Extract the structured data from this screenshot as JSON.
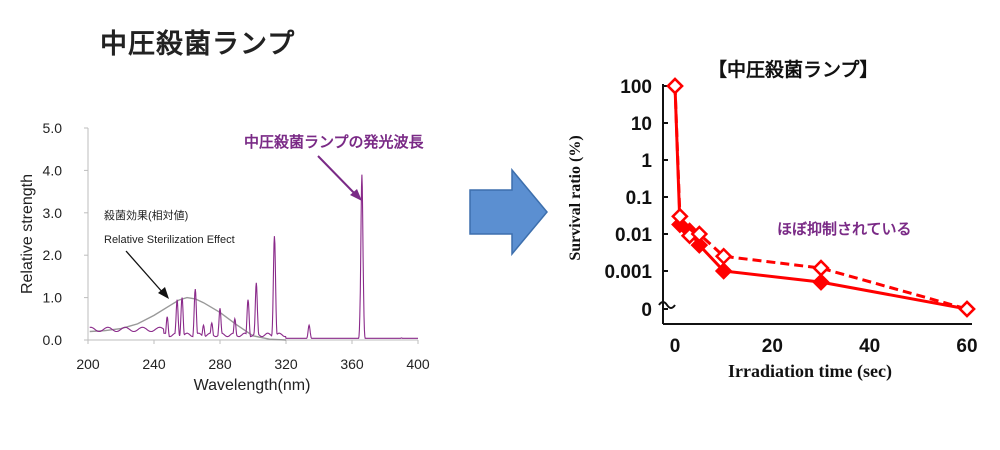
{
  "header": {
    "title": "中圧殺菌ランプ"
  },
  "chart_data": [
    {
      "type": "line",
      "title": "",
      "xlabel": "Wavelength(nm)",
      "ylabel": "Relative strength",
      "xlim": [
        200,
        400
      ],
      "ylim": [
        0,
        5.0
      ],
      "x_ticks": [
        "200",
        "240",
        "280",
        "320",
        "360",
        "400"
      ],
      "y_ticks": [
        "0.0",
        "1.0",
        "2.0",
        "3.0",
        "4.0",
        "5.0"
      ],
      "annotations": {
        "emission": "中圧殺菌ランプの発光波長",
        "sterilization_jp": "殺菌効果(相対値)",
        "sterilization_en": "Relative Sterilization Effect"
      },
      "series": [
        {
          "name": "殺菌効果(相対値) Relative Sterilization Effect",
          "color": "#999999",
          "x": [
            201,
            210,
            220,
            230,
            240,
            250,
            255,
            260,
            265,
            270,
            280,
            290,
            300,
            310,
            320
          ],
          "y": [
            0.2,
            0.22,
            0.27,
            0.38,
            0.58,
            0.82,
            0.94,
            1.0,
            0.97,
            0.88,
            0.65,
            0.36,
            0.1,
            0.02,
            0.0
          ]
        },
        {
          "name": "中圧殺菌ランプの発光波長",
          "color": "#8a2a8a",
          "peaks": [
            {
              "x": 248,
              "y": 0.55
            },
            {
              "x": 254,
              "y": 0.95
            },
            {
              "x": 257,
              "y": 1.0
            },
            {
              "x": 265,
              "y": 1.2
            },
            {
              "x": 270,
              "y": 0.35
            },
            {
              "x": 275,
              "y": 0.4
            },
            {
              "x": 280,
              "y": 0.75
            },
            {
              "x": 289,
              "y": 0.5
            },
            {
              "x": 297,
              "y": 0.95
            },
            {
              "x": 302,
              "y": 1.35
            },
            {
              "x": 313,
              "y": 2.45
            },
            {
              "x": 334,
              "y": 0.35
            },
            {
              "x": 366,
              "y": 3.9
            },
            {
              "x": 390,
              "y": 0.05
            }
          ]
        }
      ]
    },
    {
      "type": "line",
      "title": "【中圧殺菌ランプ】",
      "xlabel": "Irradiation time (sec)",
      "ylabel": "Survival ratio (%)",
      "xlim": [
        0,
        60
      ],
      "ylog": true,
      "y_ticks": [
        "100",
        "10",
        "1",
        "0.1",
        "0.01",
        "0.001",
        "0"
      ],
      "x_ticks": [
        "0",
        "20",
        "40",
        "60"
      ],
      "annotation": "ほぼ抑制されている",
      "series": [
        {
          "name": "solid",
          "style": "solid",
          "marker": "filled-diamond",
          "color": "#ff0000",
          "x": [
            0,
            1,
            3,
            5,
            10,
            30,
            60
          ],
          "y": [
            100,
            0.018,
            0.012,
            0.005,
            0.001,
            0.0005,
            0
          ]
        },
        {
          "name": "dashed",
          "style": "dashed",
          "marker": "open-diamond",
          "color": "#ff0000",
          "x": [
            0,
            1,
            3,
            5,
            10,
            30,
            60
          ],
          "y": [
            100,
            0.03,
            0.009,
            0.01,
            0.0025,
            0.0012,
            0
          ]
        }
      ]
    }
  ]
}
